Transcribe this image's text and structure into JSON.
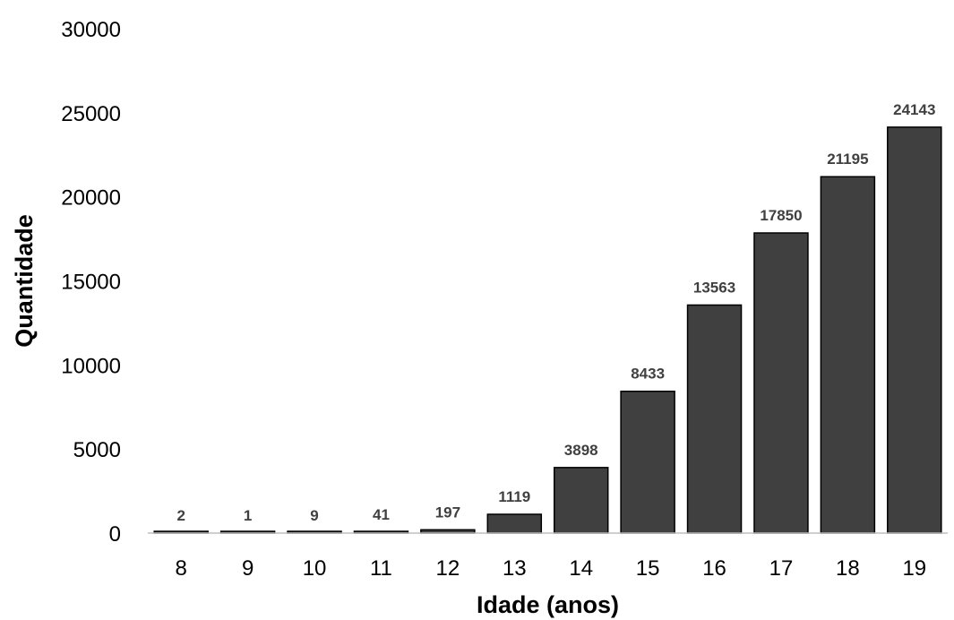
{
  "chart_data": {
    "type": "bar",
    "title": "",
    "xlabel": "Idade (anos)",
    "ylabel": "Quantidade",
    "categories": [
      "8",
      "9",
      "10",
      "11",
      "12",
      "13",
      "14",
      "15",
      "16",
      "17",
      "18",
      "19"
    ],
    "values": [
      2,
      1,
      9,
      41,
      197,
      1119,
      3898,
      8433,
      13563,
      17850,
      21195,
      24143
    ],
    "data_labels": [
      "2",
      "1",
      "9",
      "41",
      "197",
      "1119",
      "3898",
      "8433",
      "13563",
      "17850",
      "21195",
      "24143"
    ],
    "yticks": [
      "0",
      "5000",
      "10000",
      "15000",
      "20000",
      "25000",
      "30000"
    ],
    "ylim": [
      0,
      30000
    ],
    "grid": false,
    "legend": "none",
    "colors": {
      "bar_fill": "#404040",
      "bar_stroke": "#000000",
      "axis_line": "#bfbfbf",
      "data_label": "#404040",
      "text": "#000000"
    }
  }
}
